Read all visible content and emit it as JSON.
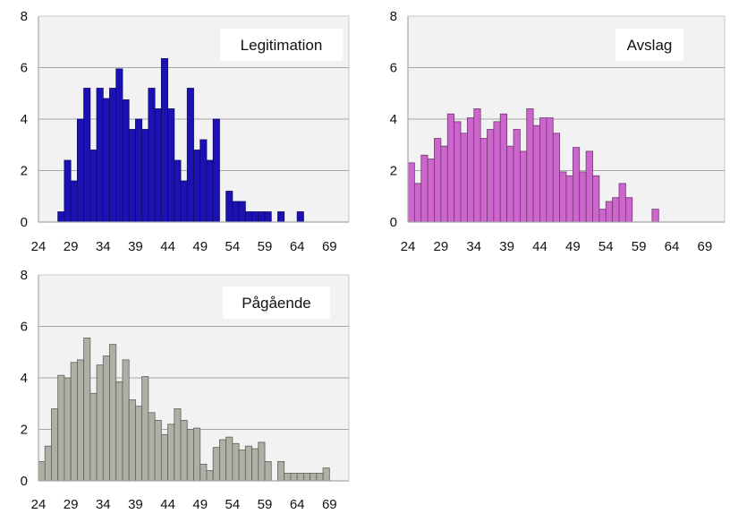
{
  "chart_data": [
    {
      "type": "bar",
      "title": "Legitimation",
      "xlabel": "",
      "ylabel": "",
      "ylim": [
        0,
        8
      ],
      "yticks": [
        "0",
        "2",
        "4",
        "6",
        "8"
      ],
      "xlim": [
        24,
        72
      ],
      "xticks": [
        "24",
        "29",
        "34",
        "39",
        "44",
        "49",
        "54",
        "59",
        "64",
        "69"
      ],
      "grid": true,
      "color": "#1c12b4",
      "x": [
        24,
        25,
        26,
        27,
        28,
        29,
        30,
        31,
        32,
        33,
        34,
        35,
        36,
        37,
        38,
        39,
        40,
        41,
        42,
        43,
        44,
        45,
        46,
        47,
        48,
        49,
        50,
        51,
        52,
        53,
        54,
        55,
        56,
        57,
        58,
        59,
        60,
        61,
        62,
        63,
        64,
        65,
        66,
        67,
        68,
        69,
        70,
        71
      ],
      "values": [
        0,
        0,
        0,
        0.4,
        2.4,
        1.6,
        4.0,
        5.2,
        2.8,
        5.2,
        4.8,
        5.2,
        5.95,
        4.75,
        3.6,
        4.0,
        3.6,
        5.2,
        4.4,
        6.35,
        4.4,
        2.4,
        1.6,
        5.2,
        2.8,
        3.2,
        2.4,
        4.0,
        0,
        1.2,
        0.8,
        0.8,
        0.4,
        0.4,
        0.4,
        0.4,
        0,
        0.4,
        0,
        0,
        0.4,
        0,
        0,
        0,
        0,
        0,
        0,
        0
      ]
    },
    {
      "type": "bar",
      "title": "Avslag",
      "xlabel": "",
      "ylabel": "",
      "ylim": [
        0,
        8
      ],
      "yticks": [
        "0",
        "2",
        "4",
        "6",
        "8"
      ],
      "xlim": [
        24,
        72
      ],
      "xticks": [
        "24",
        "29",
        "34",
        "39",
        "44",
        "49",
        "54",
        "59",
        "64",
        "69"
      ],
      "grid": true,
      "color": "#cc66cc",
      "x": [
        24,
        25,
        26,
        27,
        28,
        29,
        30,
        31,
        32,
        33,
        34,
        35,
        36,
        37,
        38,
        39,
        40,
        41,
        42,
        43,
        44,
        45,
        46,
        47,
        48,
        49,
        50,
        51,
        52,
        53,
        54,
        55,
        56,
        57,
        58,
        59,
        60,
        61,
        62,
        63,
        64,
        65,
        66,
        67,
        68,
        69,
        70,
        71
      ],
      "values": [
        2.3,
        1.5,
        2.6,
        2.45,
        3.25,
        2.95,
        4.2,
        3.9,
        3.45,
        4.05,
        4.4,
        3.25,
        3.6,
        3.9,
        4.2,
        2.95,
        3.6,
        2.75,
        4.4,
        3.75,
        4.05,
        4.05,
        3.45,
        1.95,
        1.8,
        2.9,
        1.95,
        2.75,
        1.8,
        0.5,
        0.8,
        0.95,
        1.5,
        0.95,
        0,
        0,
        0,
        0.5,
        0,
        0,
        0,
        0,
        0,
        0,
        0,
        0,
        0,
        0
      ]
    },
    {
      "type": "bar",
      "title": "Pågående",
      "xlabel": "",
      "ylabel": "",
      "ylim": [
        0,
        8
      ],
      "yticks": [
        "0",
        "2",
        "4",
        "6",
        "8"
      ],
      "xlim": [
        24,
        72
      ],
      "xticks": [
        "24",
        "29",
        "34",
        "39",
        "44",
        "49",
        "54",
        "59",
        "64",
        "69"
      ],
      "grid": true,
      "color": "#afafa6",
      "x": [
        24,
        25,
        26,
        27,
        28,
        29,
        30,
        31,
        32,
        33,
        34,
        35,
        36,
        37,
        38,
        39,
        40,
        41,
        42,
        43,
        44,
        45,
        46,
        47,
        48,
        49,
        50,
        51,
        52,
        53,
        54,
        55,
        56,
        57,
        58,
        59,
        60,
        61,
        62,
        63,
        64,
        65,
        66,
        67,
        68,
        69,
        70,
        71
      ],
      "values": [
        0.75,
        1.35,
        2.8,
        4.1,
        4.0,
        4.6,
        4.7,
        5.55,
        3.4,
        4.5,
        4.85,
        5.3,
        3.85,
        4.7,
        3.15,
        2.9,
        4.05,
        2.65,
        2.35,
        1.8,
        2.2,
        2.8,
        2.35,
        2.0,
        2.05,
        0.65,
        0.4,
        1.3,
        1.6,
        1.7,
        1.45,
        1.2,
        1.35,
        1.25,
        1.5,
        0.75,
        0,
        0.75,
        0.3,
        0.3,
        0.3,
        0.3,
        0.3,
        0.3,
        0.5,
        0,
        0,
        0
      ]
    }
  ]
}
